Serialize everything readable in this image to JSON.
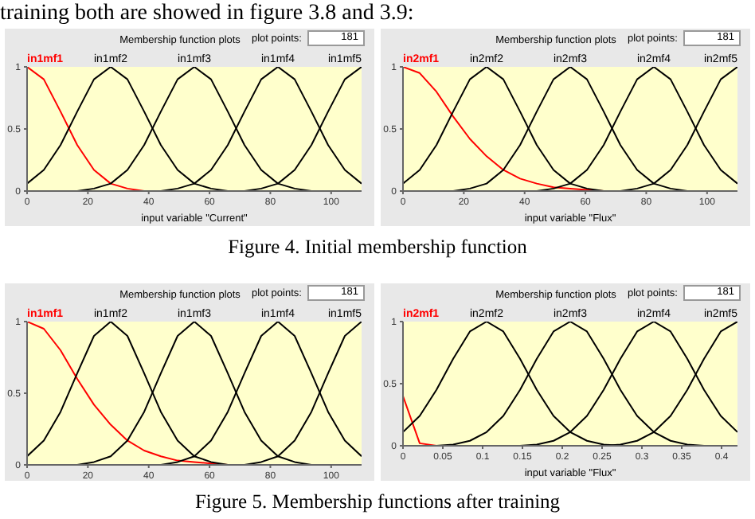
{
  "chart_data": [
    {
      "type": "line",
      "title": "Membership function plots",
      "subtitle": "plot points:",
      "xlabel": "input variable \"Current\"",
      "annotations": [
        "181",
        "training both are showed in figure 3.8 and 3.9:"
      ],
      "x": [
        0,
        5.5,
        11,
        16.5,
        22,
        27.5,
        33,
        38.5,
        44,
        49.5,
        55,
        60.5,
        66,
        71.5,
        77,
        82.5,
        88,
        93.5,
        99,
        104.5,
        110
      ],
      "xlim": [
        0,
        110
      ],
      "xticks": [
        0,
        20,
        40,
        60,
        80,
        100
      ],
      "ylim": [
        0,
        1
      ],
      "yticks": [
        0,
        0.5,
        1
      ],
      "legend": false,
      "grid": false,
      "marker": "none",
      "line_style": "solid",
      "series": [
        {
          "name": "in1mf1",
          "color": "#ff0000",
          "values": [
            1,
            0.9,
            0.64,
            0.37,
            0.17,
            0.06,
            0.02,
            0,
            null,
            null,
            null,
            null,
            null,
            null,
            null,
            null,
            null,
            null,
            null,
            null,
            null
          ]
        },
        {
          "name": "in1mf2",
          "color": "#000000",
          "values": [
            0.06,
            0.17,
            0.37,
            0.64,
            0.9,
            1,
            0.9,
            0.64,
            0.37,
            0.17,
            0.06,
            0.02,
            0,
            null,
            null,
            null,
            null,
            null,
            null,
            null,
            null
          ]
        },
        {
          "name": "in1mf3",
          "color": "#000000",
          "values": [
            null,
            null,
            null,
            0,
            0.02,
            0.06,
            0.17,
            0.37,
            0.64,
            0.9,
            1,
            0.9,
            0.64,
            0.37,
            0.17,
            0.06,
            0.02,
            0,
            null,
            null,
            null
          ]
        },
        {
          "name": "in1mf4",
          "color": "#000000",
          "values": [
            null,
            null,
            null,
            null,
            null,
            null,
            null,
            null,
            0,
            0.02,
            0.06,
            0.17,
            0.37,
            0.64,
            0.9,
            1,
            0.9,
            0.64,
            0.37,
            0.17,
            0.06
          ]
        },
        {
          "name": "in1mf5",
          "color": "#000000",
          "values": [
            null,
            null,
            null,
            null,
            null,
            null,
            null,
            null,
            null,
            null,
            null,
            null,
            null,
            0,
            0.02,
            0.06,
            0.17,
            0.37,
            0.64,
            0.9,
            1
          ]
        }
      ]
    },
    {
      "type": "line",
      "title": "Membership function plots",
      "subtitle": "plot points:",
      "xlabel": "input variable \"Flux\"",
      "annotations": [
        "181",
        "Figure 4.   Initial membership function"
      ],
      "x": [
        0,
        5.5,
        11,
        16.5,
        22,
        27.5,
        33,
        38.5,
        44,
        49.5,
        55,
        60.5,
        66,
        71.5,
        77,
        82.5,
        88,
        93.5,
        99,
        104.5,
        110
      ],
      "xlim": [
        0,
        110
      ],
      "xticks": [
        0,
        20,
        40,
        60,
        80,
        100
      ],
      "ylim": [
        0,
        1
      ],
      "yticks": [
        0,
        0.5,
        1
      ],
      "legend": false,
      "grid": false,
      "marker": "none",
      "line_style": "solid",
      "series": [
        {
          "name": "in2mf1",
          "color": "#ff0000",
          "values": [
            1,
            0.95,
            0.8,
            0.6,
            0.42,
            0.28,
            0.17,
            0.1,
            0.06,
            0.03,
            0.02,
            0.01,
            0,
            null,
            null,
            null,
            null,
            null,
            null,
            null,
            null
          ]
        },
        {
          "name": "in2mf2",
          "color": "#000000",
          "values": [
            0.06,
            0.17,
            0.37,
            0.64,
            0.9,
            1,
            0.9,
            0.64,
            0.37,
            0.17,
            0.06,
            0.02,
            0,
            null,
            null,
            null,
            null,
            null,
            null,
            null,
            null
          ]
        },
        {
          "name": "in2mf3",
          "color": "#000000",
          "values": [
            null,
            null,
            null,
            0,
            0.02,
            0.06,
            0.17,
            0.37,
            0.64,
            0.9,
            1,
            0.9,
            0.64,
            0.37,
            0.17,
            0.06,
            0.02,
            0,
            null,
            null,
            null
          ]
        },
        {
          "name": "in2mf4",
          "color": "#000000",
          "values": [
            null,
            null,
            null,
            null,
            null,
            null,
            null,
            null,
            0,
            0.02,
            0.06,
            0.17,
            0.37,
            0.64,
            0.9,
            1,
            0.9,
            0.64,
            0.37,
            0.17,
            0.06
          ]
        },
        {
          "name": "in2mf5",
          "color": "#000000",
          "values": [
            null,
            null,
            null,
            null,
            null,
            null,
            null,
            null,
            null,
            null,
            null,
            null,
            null,
            0,
            0.02,
            0.06,
            0.17,
            0.37,
            0.64,
            0.9,
            1
          ]
        }
      ]
    },
    {
      "type": "line",
      "title": "Membership function plots",
      "subtitle": "plot points:",
      "annotations": [
        "181"
      ],
      "x": [
        0,
        5.5,
        11,
        16.5,
        22,
        27.5,
        33,
        38.5,
        44,
        49.5,
        55,
        60.5,
        66,
        71.5,
        77,
        82.5,
        88,
        93.5,
        99,
        104.5,
        110
      ],
      "xlim": [
        0,
        110
      ],
      "xticks": [
        0,
        20,
        40,
        60,
        80,
        100
      ],
      "ylim": [
        0,
        1
      ],
      "yticks": [
        0,
        0.5,
        1
      ],
      "legend": false,
      "grid": false,
      "marker": "none",
      "line_style": "solid",
      "series": [
        {
          "name": "in1mf1",
          "color": "#ff0000",
          "values": [
            1,
            0.95,
            0.8,
            0.6,
            0.42,
            0.28,
            0.17,
            0.1,
            0.06,
            0.03,
            0.02,
            0.01,
            0,
            null,
            null,
            null,
            null,
            null,
            null,
            null,
            null
          ]
        },
        {
          "name": "in1mf2",
          "color": "#000000",
          "values": [
            0.06,
            0.17,
            0.37,
            0.64,
            0.9,
            1,
            0.9,
            0.64,
            0.37,
            0.17,
            0.06,
            0.02,
            0,
            null,
            null,
            null,
            null,
            null,
            null,
            null,
            null
          ]
        },
        {
          "name": "in1mf3",
          "color": "#000000",
          "values": [
            null,
            null,
            null,
            0,
            0.02,
            0.06,
            0.17,
            0.37,
            0.64,
            0.9,
            1,
            0.9,
            0.64,
            0.37,
            0.17,
            0.06,
            0.02,
            0,
            null,
            null,
            null
          ]
        },
        {
          "name": "in1mf4",
          "color": "#000000",
          "values": [
            null,
            null,
            null,
            null,
            null,
            null,
            null,
            null,
            0,
            0.02,
            0.06,
            0.17,
            0.37,
            0.64,
            0.9,
            1,
            0.9,
            0.64,
            0.37,
            0.17,
            0.06
          ]
        },
        {
          "name": "in1mf5",
          "color": "#000000",
          "values": [
            null,
            null,
            null,
            null,
            null,
            null,
            null,
            null,
            null,
            null,
            null,
            null,
            null,
            0,
            0.02,
            0.06,
            0.17,
            0.37,
            0.64,
            0.9,
            1
          ]
        }
      ]
    },
    {
      "type": "line",
      "title": "Membership function plots",
      "subtitle": "plot points:",
      "xlabel": "input variable \"Flux\"",
      "annotations": [
        "181",
        "Figure 5.   Membership functions after training"
      ],
      "x": [
        0,
        0.021,
        0.042,
        0.063,
        0.084,
        0.105,
        0.126,
        0.147,
        0.168,
        0.189,
        0.21,
        0.231,
        0.252,
        0.273,
        0.294,
        0.315,
        0.336,
        0.357,
        0.378,
        0.399,
        0.42
      ],
      "xlim": [
        0,
        0.42
      ],
      "xticks": [
        0,
        0.05,
        0.1,
        0.15,
        0.2,
        0.25,
        0.3,
        0.35,
        0.4
      ],
      "ylim": [
        0,
        1
      ],
      "yticks": [
        0,
        0.5,
        1
      ],
      "legend": false,
      "grid": false,
      "marker": "none",
      "line_style": "solid",
      "series": [
        {
          "name": "in2mf1",
          "color": "#ff0000",
          "values": [
            0.4,
            0.02,
            0,
            null,
            null,
            null,
            null,
            null,
            null,
            null,
            null,
            null,
            null,
            null,
            null,
            null,
            null,
            null,
            null,
            null,
            null
          ]
        },
        {
          "name": "in2mf2",
          "color": "#000000",
          "values": [
            0.11,
            0.24,
            0.45,
            0.7,
            0.92,
            1,
            0.92,
            0.7,
            0.45,
            0.24,
            0.11,
            0.04,
            0.01,
            0,
            null,
            null,
            null,
            null,
            null,
            null,
            null
          ]
        },
        {
          "name": "in2mf3",
          "color": "#000000",
          "values": [
            null,
            null,
            0,
            0.01,
            0.04,
            0.11,
            0.24,
            0.45,
            0.7,
            0.92,
            1,
            0.92,
            0.7,
            0.45,
            0.24,
            0.11,
            0.04,
            0.01,
            0,
            null,
            null
          ]
        },
        {
          "name": "in2mf4",
          "color": "#000000",
          "values": [
            null,
            null,
            null,
            null,
            null,
            null,
            null,
            0,
            0.01,
            0.04,
            0.11,
            0.24,
            0.45,
            0.7,
            0.92,
            1,
            0.92,
            0.7,
            0.45,
            0.24,
            0.11
          ]
        },
        {
          "name": "in2mf5",
          "color": "#000000",
          "values": [
            null,
            null,
            null,
            null,
            null,
            null,
            null,
            null,
            null,
            null,
            null,
            null,
            0,
            0.01,
            0.04,
            0.11,
            0.24,
            0.45,
            0.7,
            0.92,
            1
          ]
        }
      ]
    }
  ]
}
